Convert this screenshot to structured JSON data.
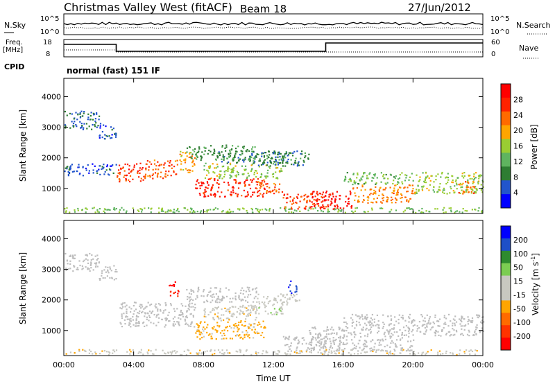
{
  "header": {
    "station": "Christmas Valley West (fitACF)",
    "beam": "Beam 18",
    "date": "27/Jun/2012"
  },
  "top_panels": {
    "nsky_label": "N.Sky",
    "nsearch_label": "N.Search",
    "noise_ticks": [
      "10^5",
      "10^0"
    ],
    "freq_label_1": "Freq.",
    "freq_label_2": "[MHz]",
    "freq_ticks": [
      "18",
      "8"
    ],
    "nave_label": "Nave",
    "nave_ticks": [
      "60",
      "0"
    ],
    "cpid_label": "CPID",
    "cpid_text": "normal (fast) 151 IF"
  },
  "colors": {
    "power_scale": [
      "#0000ff",
      "#2255cc",
      "#2e7d32",
      "#5fb45f",
      "#9acd32",
      "#ffa500",
      "#ff6a00",
      "#ff2200",
      "#ff0000"
    ],
    "velocity_scale": [
      "#0000ff",
      "#1e4fc8",
      "#2e8b2e",
      "#7ccd52",
      "#c8c8c0",
      "#c8c8c0",
      "#ffa500",
      "#ff6a00",
      "#ff3300",
      "#ff0000"
    ],
    "ground_scatter": "#bebebe"
  },
  "chart_data": [
    {
      "type": "heatmap",
      "name": "power",
      "ylabel": "Slant Range [km]",
      "y_ticks": [
        "4000",
        "3000",
        "2000",
        "1000"
      ],
      "ylim": [
        180,
        4600
      ],
      "colorbar_label": "Power [dB]",
      "colorbar_ticks": [
        "28",
        "24",
        "20",
        "16",
        "12",
        "8",
        "4"
      ],
      "colorbar_range": [
        0,
        32
      ],
      "blobs": [
        {
          "t0": 3.0,
          "t1": 4.6,
          "r0": 1200,
          "r1": 1800,
          "v": 26
        },
        {
          "t0": 4.6,
          "t1": 6.5,
          "r0": 1300,
          "r1": 1900,
          "v": 24
        },
        {
          "t0": 6.5,
          "t1": 7.5,
          "r0": 1500,
          "r1": 2200,
          "v": 20
        },
        {
          "t0": 7.5,
          "t1": 11.5,
          "r0": 700,
          "r1": 1300,
          "v": 27
        },
        {
          "t0": 8.0,
          "t1": 12.5,
          "r0": 1300,
          "r1": 1800,
          "v": 16
        },
        {
          "t0": 9.0,
          "t1": 13.0,
          "r0": 1800,
          "r1": 2200,
          "v": 9
        },
        {
          "t0": 11.0,
          "t1": 12.5,
          "r0": 800,
          "r1": 1200,
          "v": 24
        },
        {
          "t0": 12.5,
          "t1": 15.0,
          "r0": 300,
          "r1": 800,
          "v": 25
        },
        {
          "t0": 14.0,
          "t1": 16.5,
          "r0": 300,
          "r1": 900,
          "v": 28
        },
        {
          "t0": 16.5,
          "t1": 20.0,
          "r0": 500,
          "r1": 1100,
          "v": 22
        },
        {
          "t0": 16.0,
          "t1": 20.0,
          "r0": 1100,
          "r1": 1500,
          "v": 13
        },
        {
          "t0": 20.0,
          "t1": 24.0,
          "r0": 800,
          "r1": 1500,
          "v": 16
        },
        {
          "t0": 22.5,
          "t1": 23.5,
          "r0": 800,
          "r1": 1200,
          "v": 24
        },
        {
          "t0": 0.0,
          "t1": 2.0,
          "r0": 2900,
          "r1": 3500,
          "v": 7
        },
        {
          "t0": 2.0,
          "t1": 3.0,
          "r0": 2600,
          "r1": 3100,
          "v": 6
        },
        {
          "t0": 0.0,
          "t1": 3.0,
          "r0": 1400,
          "r1": 1800,
          "v": 5
        },
        {
          "t0": 7.0,
          "t1": 11.0,
          "r0": 1900,
          "r1": 2400,
          "v": 10
        },
        {
          "t0": 11.0,
          "t1": 14.0,
          "r0": 1700,
          "r1": 2200,
          "v": 8
        },
        {
          "t0": 0.0,
          "t1": 24.0,
          "r0": 180,
          "r1": 350,
          "v": 14
        }
      ]
    },
    {
      "type": "heatmap",
      "name": "velocity",
      "ylabel": "Slant Range [km]",
      "xlabel": "Time UT",
      "x_ticks": [
        "00:00",
        "04:00",
        "08:00",
        "12:00",
        "16:00",
        "20:00",
        "00:00"
      ],
      "y_ticks": [
        "4000",
        "3000",
        "2000",
        "1000"
      ],
      "ylim": [
        180,
        4600
      ],
      "colorbar_label": "Velocity [m s^-1]",
      "colorbar_ticks": [
        "200",
        "100",
        "50",
        "15",
        "-15",
        "-50",
        "-100",
        "-200"
      ],
      "colorbar_range": [
        -250,
        250
      ],
      "blobs": [
        {
          "t0": 0.0,
          "t1": 2.0,
          "r0": 2900,
          "r1": 3500,
          "v": 0,
          "g": true
        },
        {
          "t0": 2.0,
          "t1": 3.0,
          "r0": 2600,
          "r1": 3100,
          "v": 0,
          "g": true
        },
        {
          "t0": 3.0,
          "t1": 7.5,
          "r0": 1100,
          "r1": 1900,
          "v": 0,
          "g": true
        },
        {
          "t0": 7.5,
          "t1": 11.5,
          "r0": 700,
          "r1": 1300,
          "v": -60
        },
        {
          "t0": 8.0,
          "t1": 11.0,
          "r0": 1300,
          "r1": 1800,
          "v": -40
        },
        {
          "t0": 10.0,
          "t1": 12.5,
          "r0": 1500,
          "r1": 1800,
          "v": 40
        },
        {
          "t0": 11.0,
          "t1": 13.5,
          "r0": 1800,
          "r1": 2200,
          "v": 30
        },
        {
          "t0": 12.5,
          "t1": 15.0,
          "r0": 300,
          "r1": 800,
          "v": 0,
          "g": true
        },
        {
          "t0": 14.0,
          "t1": 20.0,
          "r0": 300,
          "r1": 1100,
          "v": 0,
          "g": true
        },
        {
          "t0": 16.0,
          "t1": 20.0,
          "r0": 1100,
          "r1": 1500,
          "v": 0,
          "g": true
        },
        {
          "t0": 20.0,
          "t1": 24.0,
          "r0": 800,
          "r1": 1500,
          "v": 0,
          "g": true
        },
        {
          "t0": 0.0,
          "t1": 24.0,
          "r0": 180,
          "r1": 350,
          "v": -40
        },
        {
          "t0": 6.0,
          "t1": 6.6,
          "r0": 2100,
          "r1": 2600,
          "v": -200
        },
        {
          "t0": 12.8,
          "t1": 13.3,
          "r0": 2200,
          "r1": 2600,
          "v": 200
        },
        {
          "t0": 7.0,
          "t1": 11.0,
          "r0": 1900,
          "r1": 2400,
          "v": 0,
          "g": true
        }
      ]
    }
  ]
}
